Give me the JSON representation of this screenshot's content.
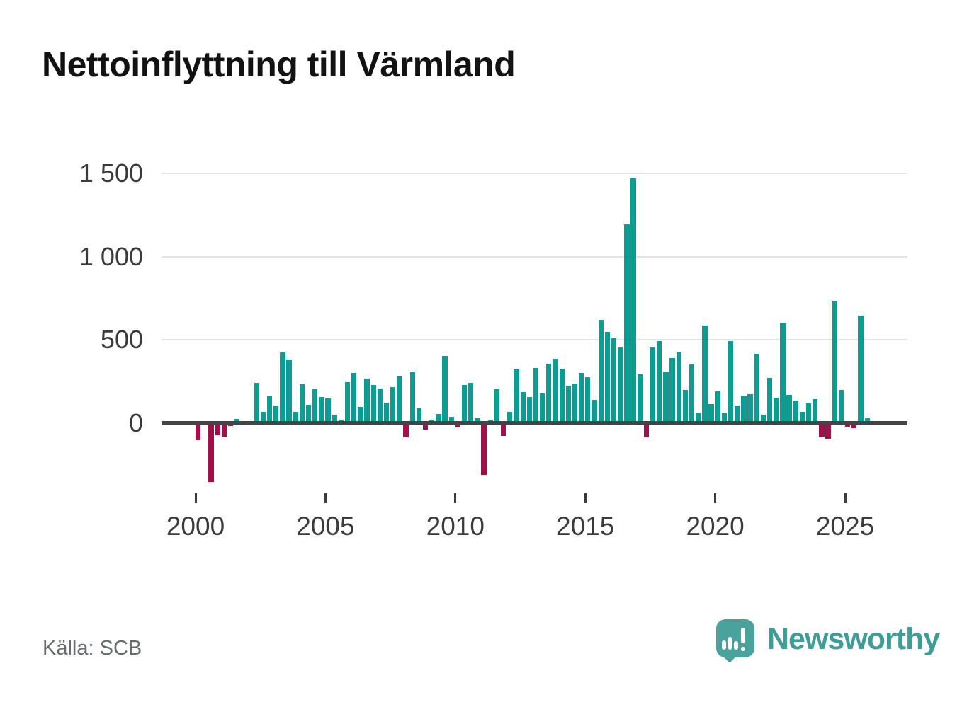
{
  "title": "Nettoinflyttning till Värmland",
  "source": "Källa: SCB",
  "branding": {
    "logo_text": "Newsworthy"
  },
  "colors": {
    "positive_bar": "#0c9c92",
    "negative_bar": "#a21049",
    "axis_line": "#414447",
    "gridline": "#e3e3e3",
    "tick_label": "#3b3b3b",
    "source_text": "#686c6e",
    "brand_teal": "#3e9e97",
    "logo_bubble": "#4aa29c"
  },
  "chart_data": {
    "type": "bar",
    "title": "Nettoinflyttning till Värmland",
    "xlabel": "",
    "ylabel": "",
    "frequency": "quarterly",
    "grid": "horizontal-only",
    "legend": "none",
    "x_tick_years": [
      2000,
      2005,
      2010,
      2015,
      2020,
      2025
    ],
    "x_tick_labels": [
      "2000",
      "2005",
      "2010",
      "2015",
      "2020",
      "2025"
    ],
    "y_ticks": [
      1500,
      1000,
      500,
      0
    ],
    "y_tick_labels": [
      "1 500",
      "1 000",
      "500",
      "0"
    ],
    "ylim": [
      -400,
      1550
    ],
    "quarters": [
      "2000K1",
      "2000K2",
      "2000K3",
      "2000K4",
      "2001K1",
      "2001K2",
      "2001K3",
      "2001K4",
      "2002K1",
      "2002K2",
      "2002K3",
      "2002K4",
      "2003K1",
      "2003K2",
      "2003K3",
      "2003K4",
      "2004K1",
      "2004K2",
      "2004K3",
      "2004K4",
      "2005K1",
      "2005K2",
      "2005K3",
      "2005K4",
      "2006K1",
      "2006K2",
      "2006K3",
      "2006K4",
      "2007K1",
      "2007K2",
      "2007K3",
      "2007K4",
      "2008K1",
      "2008K2",
      "2008K3",
      "2008K4",
      "2009K1",
      "2009K2",
      "2009K3",
      "2009K4",
      "2010K1",
      "2010K2",
      "2010K3",
      "2010K4",
      "2011K1",
      "2011K2",
      "2011K3",
      "2011K4",
      "2012K1",
      "2012K2",
      "2012K3",
      "2012K4",
      "2013K1",
      "2013K2",
      "2013K3",
      "2013K4",
      "2014K1",
      "2014K2",
      "2014K3",
      "2014K4",
      "2015K1",
      "2015K2",
      "2015K3",
      "2015K4",
      "2016K1",
      "2016K2",
      "2016K3",
      "2016K4",
      "2017K1",
      "2017K2",
      "2017K3",
      "2017K4",
      "2018K1",
      "2018K2",
      "2018K3",
      "2018K4",
      "2019K1",
      "2019K2",
      "2019K3",
      "2019K4",
      "2020K1",
      "2020K2",
      "2020K3",
      "2020K4",
      "2021K1",
      "2021K2",
      "2021K3",
      "2021K4",
      "2022K1",
      "2022K2",
      "2022K3",
      "2022K4",
      "2023K1",
      "2023K2",
      "2023K3",
      "2023K4",
      "2024K1",
      "2024K2",
      "2024K3",
      "2024K4",
      "2025K1",
      "2025K2",
      "2025K3",
      "2025K4"
    ],
    "values": [
      -106,
      0,
      -357,
      -74,
      -85,
      -21,
      25,
      0,
      0,
      241,
      68,
      160,
      104,
      425,
      382,
      68,
      234,
      108,
      203,
      156,
      146,
      47,
      13,
      245,
      302,
      94,
      267,
      227,
      208,
      122,
      214,
      283,
      -88,
      305,
      89,
      -42,
      21,
      54,
      401,
      36,
      -26,
      228,
      242,
      28,
      -311,
      17,
      203,
      -78,
      68,
      327,
      186,
      156,
      330,
      177,
      354,
      384,
      327,
      222,
      235,
      298,
      274,
      139,
      620,
      547,
      507,
      453,
      1192,
      1470,
      292,
      -88,
      453,
      493,
      309,
      388,
      422,
      198,
      349,
      58,
      583,
      111,
      190,
      58,
      490,
      106,
      160,
      174,
      415,
      47,
      271,
      153,
      602,
      170,
      132,
      64,
      118,
      142,
      -89,
      -96,
      734,
      200,
      -25,
      -33,
      646,
      26
    ]
  }
}
